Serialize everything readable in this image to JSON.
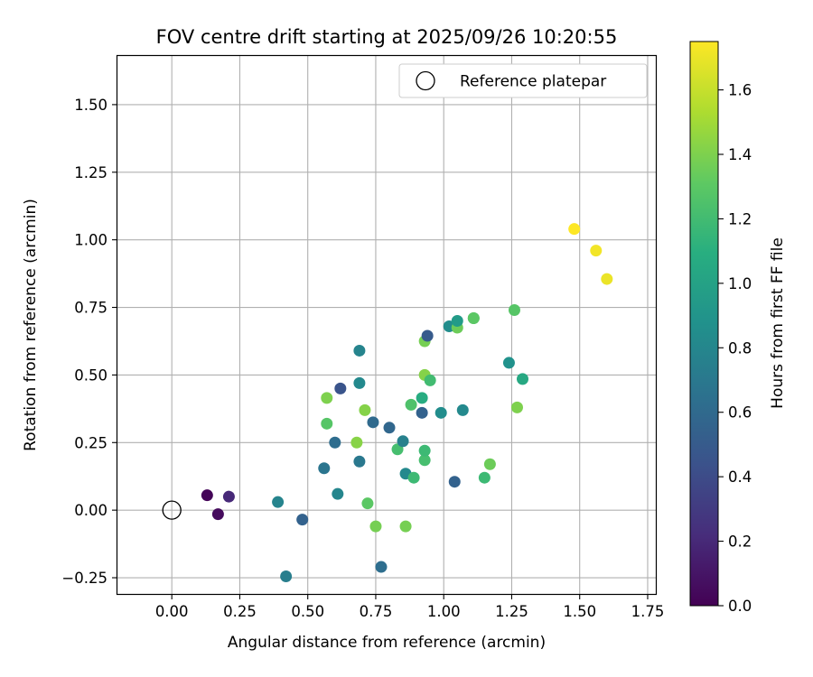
{
  "chart_data": {
    "type": "scatter",
    "title": "FOV centre drift starting at 2025/09/26 10:20:55",
    "xlabel": "Angular distance from reference (arcmin)",
    "ylabel": "Rotation from reference (arcmin)",
    "xlim": [
      -0.2,
      1.78
    ],
    "ylim": [
      -0.31,
      1.68
    ],
    "xticks": [
      0.0,
      0.25,
      0.5,
      0.75,
      1.0,
      1.25,
      1.5,
      1.75
    ],
    "xtick_labels": [
      "0.00",
      "0.25",
      "0.50",
      "0.75",
      "1.00",
      "1.25",
      "1.50",
      "1.75"
    ],
    "yticks": [
      -0.25,
      0.0,
      0.25,
      0.5,
      0.75,
      1.0,
      1.25,
      1.5
    ],
    "ytick_labels": [
      "−0.25",
      "0.00",
      "0.25",
      "0.50",
      "0.75",
      "1.00",
      "1.25",
      "1.50"
    ],
    "grid": true,
    "legend": {
      "position": "top-right",
      "entries": [
        "Reference platepar"
      ]
    },
    "reference_point": {
      "x": 0.0,
      "y": 0.0
    },
    "colorbar": {
      "label": "Hours from first FF file",
      "colormap": "viridis",
      "range": [
        0.0,
        1.75
      ],
      "ticks": [
        0.0,
        0.2,
        0.4,
        0.6,
        0.8,
        1.0,
        1.2,
        1.4,
        1.6
      ],
      "tick_labels": [
        "0.0",
        "0.2",
        "0.4",
        "0.6",
        "0.8",
        "1.0",
        "1.2",
        "1.4",
        "1.6"
      ]
    },
    "points": [
      {
        "x": 0.13,
        "y": 0.055,
        "c": 0.02
      },
      {
        "x": 0.17,
        "y": -0.015,
        "c": 0.05
      },
      {
        "x": 0.21,
        "y": 0.05,
        "c": 0.2
      },
      {
        "x": 0.39,
        "y": 0.03,
        "c": 0.78
      },
      {
        "x": 0.42,
        "y": -0.245,
        "c": 0.74
      },
      {
        "x": 0.48,
        "y": -0.035,
        "c": 0.55
      },
      {
        "x": 0.56,
        "y": 0.155,
        "c": 0.68
      },
      {
        "x": 0.57,
        "y": 0.415,
        "c": 1.4
      },
      {
        "x": 0.57,
        "y": 0.32,
        "c": 1.28
      },
      {
        "x": 0.6,
        "y": 0.25,
        "c": 0.62
      },
      {
        "x": 0.61,
        "y": 0.06,
        "c": 0.8
      },
      {
        "x": 0.62,
        "y": 0.45,
        "c": 0.45
      },
      {
        "x": 0.68,
        "y": 0.25,
        "c": 1.43
      },
      {
        "x": 0.69,
        "y": 0.59,
        "c": 0.78
      },
      {
        "x": 0.69,
        "y": 0.47,
        "c": 0.82
      },
      {
        "x": 0.69,
        "y": 0.18,
        "c": 0.7
      },
      {
        "x": 0.71,
        "y": 0.37,
        "c": 1.42
      },
      {
        "x": 0.72,
        "y": 0.025,
        "c": 1.3
      },
      {
        "x": 0.74,
        "y": 0.325,
        "c": 0.6
      },
      {
        "x": 0.75,
        "y": -0.06,
        "c": 1.38
      },
      {
        "x": 0.77,
        "y": -0.21,
        "c": 0.63
      },
      {
        "x": 0.8,
        "y": 0.305,
        "c": 0.58
      },
      {
        "x": 0.83,
        "y": 0.225,
        "c": 1.22
      },
      {
        "x": 0.85,
        "y": 0.255,
        "c": 0.76
      },
      {
        "x": 0.86,
        "y": 0.135,
        "c": 0.82
      },
      {
        "x": 0.86,
        "y": -0.06,
        "c": 1.38
      },
      {
        "x": 0.88,
        "y": 0.39,
        "c": 1.25
      },
      {
        "x": 0.89,
        "y": 0.12,
        "c": 1.18
      },
      {
        "x": 0.92,
        "y": 0.36,
        "c": 0.55
      },
      {
        "x": 0.92,
        "y": 0.415,
        "c": 1.08
      },
      {
        "x": 0.93,
        "y": 0.185,
        "c": 1.22
      },
      {
        "x": 0.93,
        "y": 0.22,
        "c": 1.18
      },
      {
        "x": 0.93,
        "y": 0.625,
        "c": 1.38
      },
      {
        "x": 0.93,
        "y": 0.5,
        "c": 1.42
      },
      {
        "x": 0.94,
        "y": 0.645,
        "c": 0.5
      },
      {
        "x": 0.95,
        "y": 0.48,
        "c": 1.2
      },
      {
        "x": 0.99,
        "y": 0.36,
        "c": 0.85
      },
      {
        "x": 1.02,
        "y": 0.68,
        "c": 0.85
      },
      {
        "x": 1.04,
        "y": 0.105,
        "c": 0.55
      },
      {
        "x": 1.05,
        "y": 0.675,
        "c": 1.35
      },
      {
        "x": 1.05,
        "y": 0.7,
        "c": 0.95
      },
      {
        "x": 1.07,
        "y": 0.37,
        "c": 0.82
      },
      {
        "x": 1.11,
        "y": 0.71,
        "c": 1.22
      },
      {
        "x": 1.11,
        "y": 0.71,
        "c": 1.3
      },
      {
        "x": 1.15,
        "y": 0.12,
        "c": 1.18
      },
      {
        "x": 1.17,
        "y": 0.17,
        "c": 1.35
      },
      {
        "x": 1.24,
        "y": 0.545,
        "c": 0.88
      },
      {
        "x": 1.26,
        "y": 0.74,
        "c": 1.28
      },
      {
        "x": 1.27,
        "y": 0.38,
        "c": 1.4
      },
      {
        "x": 1.29,
        "y": 0.485,
        "c": 1.05
      },
      {
        "x": 1.48,
        "y": 1.04,
        "c": 1.75
      },
      {
        "x": 1.56,
        "y": 0.96,
        "c": 1.72
      },
      {
        "x": 1.6,
        "y": 0.855,
        "c": 1.7
      }
    ]
  }
}
